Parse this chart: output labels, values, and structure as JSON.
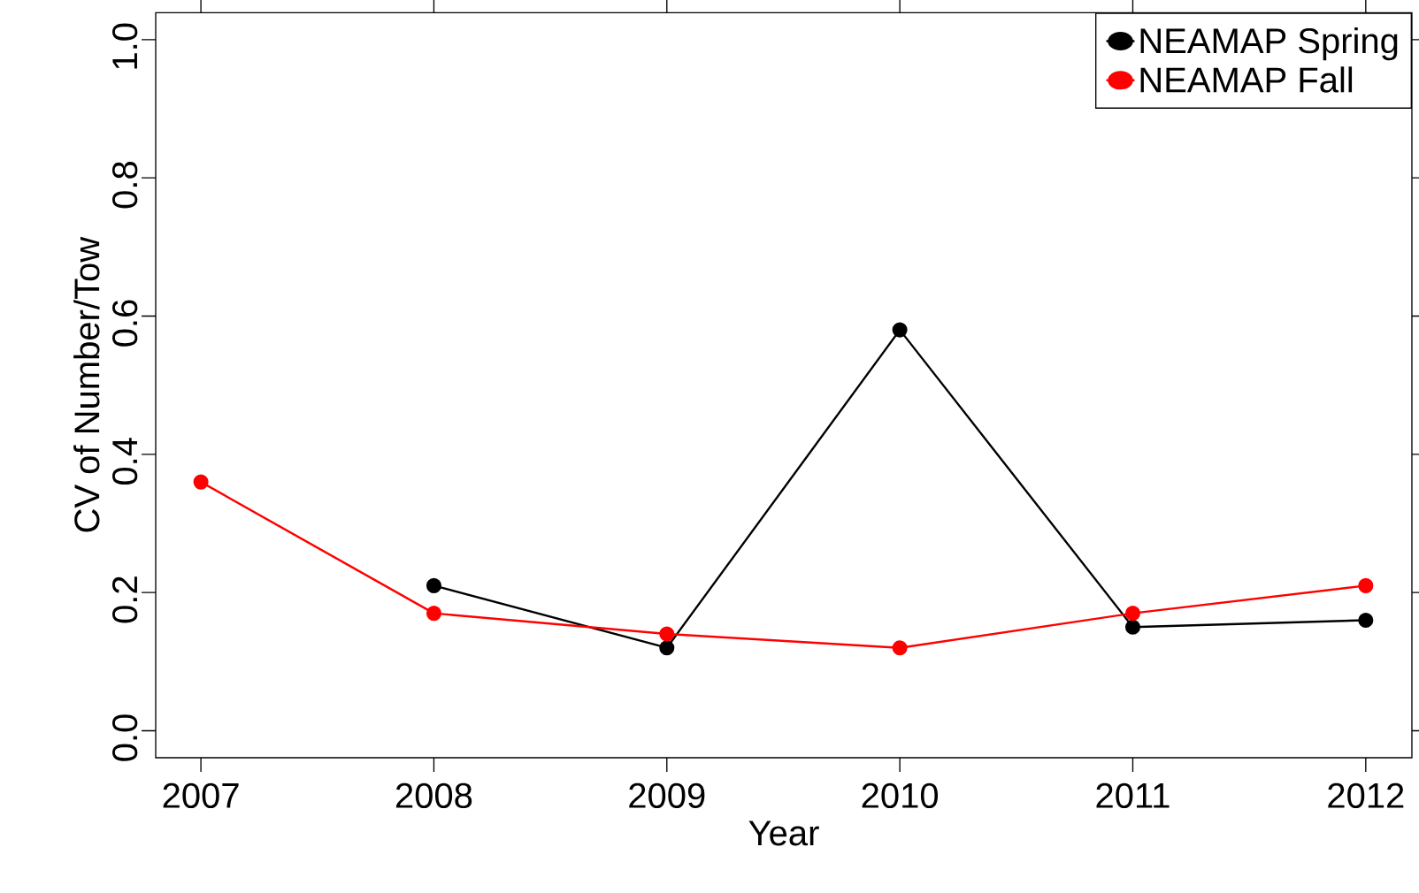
{
  "chart_data": {
    "type": "line",
    "xlabel": "Year",
    "ylabel": "CV of Number/Tow",
    "x": [
      2007,
      2008,
      2009,
      2010,
      2011,
      2012
    ],
    "series": [
      {
        "name": "NEAMAP Spring",
        "color": "#000000",
        "values": [
          null,
          0.21,
          0.12,
          0.58,
          0.15,
          0.16
        ]
      },
      {
        "name": "NEAMAP Fall",
        "color": "#ff0000",
        "values": [
          0.36,
          0.17,
          0.14,
          0.12,
          0.17,
          0.21
        ]
      }
    ],
    "xlim": [
      2006.806,
      2012.198
    ],
    "ylim": [
      -0.039,
      1.039
    ],
    "xticks": [
      2007,
      2008,
      2009,
      2010,
      2011,
      2012
    ],
    "yticks": [
      {
        "value": 0,
        "label": "0.0"
      },
      0.2,
      0.4,
      0.6,
      0.8,
      {
        "value": 1,
        "label": "1.0"
      }
    ],
    "legend": "top right",
    "marker": "circle",
    "line_style": "solid",
    "grid": false
  }
}
